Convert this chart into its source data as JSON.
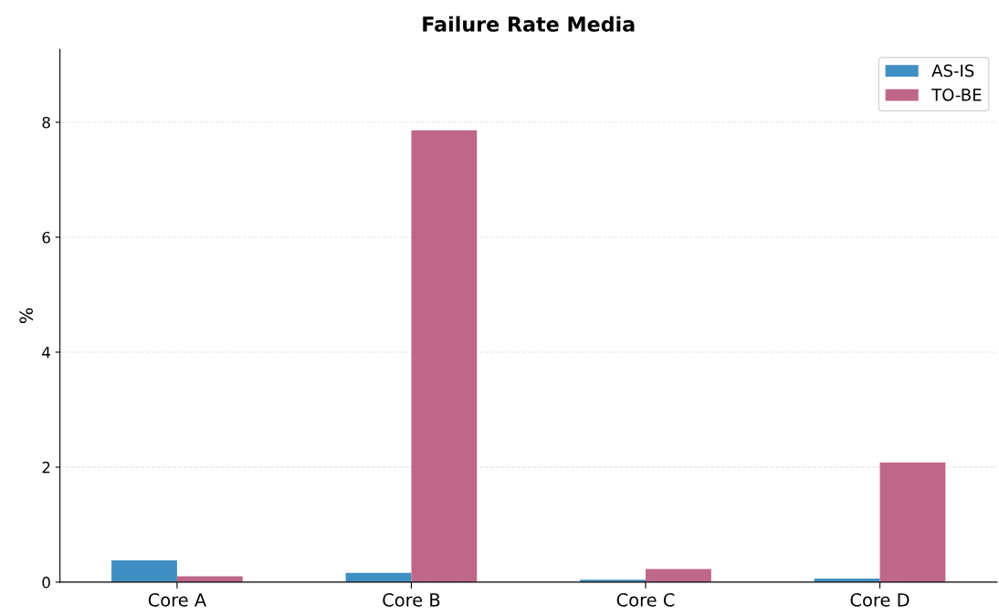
{
  "chart_data": {
    "type": "bar",
    "title": "Failure Rate Media",
    "ylabel": "%",
    "categories": [
      "Core A",
      "Core B",
      "Core C",
      "Core D"
    ],
    "series": [
      {
        "name": "AS-IS",
        "color": "#408fc3",
        "values": [
          0.38,
          0.16,
          0.04,
          0.06
        ]
      },
      {
        "name": "TO-BE",
        "color": "#bf6788",
        "values": [
          0.1,
          7.86,
          0.23,
          2.08
        ]
      }
    ],
    "ylim": [
      0,
      9.27
    ],
    "yticks": [
      0,
      2,
      4,
      6,
      8
    ],
    "grid": "y",
    "legend": "top right"
  }
}
